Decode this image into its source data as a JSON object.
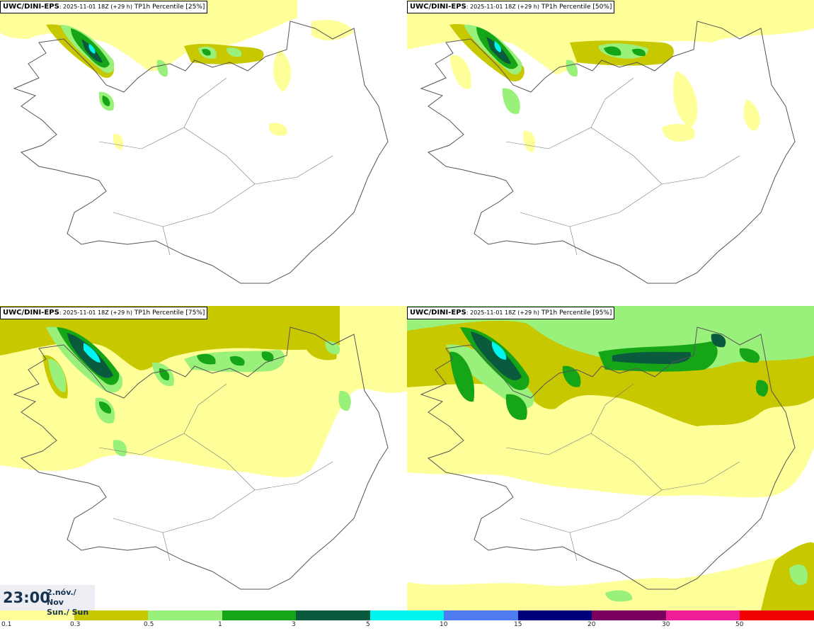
{
  "panels": [
    {
      "model": "UWC/DINI-EPS",
      "run": ": 2025-11-01 18Z (+29 h)",
      "param": "TP1h Percentile [25%]"
    },
    {
      "model": "UWC/DINI-EPS",
      "run": ": 2025-11-01 18Z (+29 h)",
      "param": "TP1h Percentile [50%]"
    },
    {
      "model": "UWC/DINI-EPS",
      "run": ": 2025-11-01 18Z (+29 h)",
      "param": "TP1h Percentile [75%]"
    },
    {
      "model": "UWC/DINI-EPS",
      "run": ": 2025-11-01 18Z (+29 h)",
      "param": "TP1h Percentile [95%]"
    }
  ],
  "valid_time": {
    "time": "23:00",
    "date_line1": "2.nóv./ Nov",
    "date_line2": "Sun./ Sun"
  },
  "legend": {
    "colors": [
      "#ffff99",
      "#c8c800",
      "#99f07a",
      "#16a516",
      "#0a5a3e",
      "#00f5f0",
      "#4e7cf0",
      "#00007a",
      "#7a0060",
      "#f01e96",
      "#f00000"
    ],
    "labels": [
      "0.1",
      "0.3",
      "0.5",
      "1",
      "3",
      "5",
      "10",
      "15",
      "20",
      "30",
      "50"
    ]
  }
}
